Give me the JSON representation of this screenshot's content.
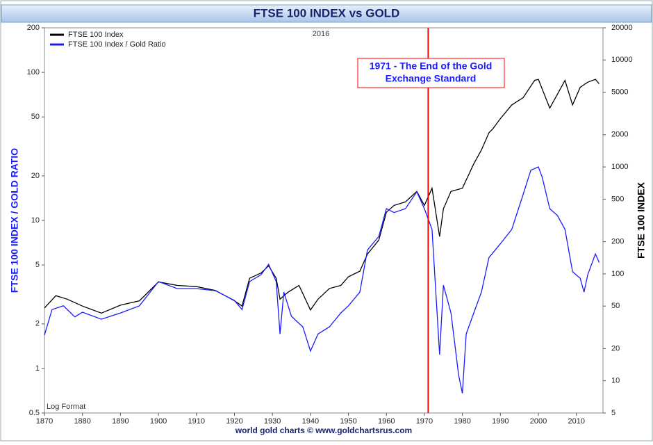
{
  "chart_data": {
    "type": "line",
    "title": "FTSE 100 INDEX vs GOLD",
    "subtitle": "2016",
    "note": "Log Format",
    "footer": "world gold charts © www.goldchartsrus.com",
    "ylabel": "FTSE 100 INDEX / GOLD RATIO",
    "y2label": "FTSE 100 INDEX",
    "xlim": [
      1870,
      2017
    ],
    "xticks": [
      1870,
      1880,
      1890,
      1900,
      1910,
      1920,
      1930,
      1940,
      1950,
      1960,
      1970,
      1980,
      1990,
      2000,
      2010
    ],
    "ylim": [
      0.5,
      200
    ],
    "yticks": [
      0.5,
      1,
      2,
      5,
      10,
      20,
      50,
      100,
      200
    ],
    "y2lim": [
      5,
      20000
    ],
    "y2ticks": [
      5,
      10,
      20,
      50,
      100,
      200,
      500,
      1000,
      2000,
      5000,
      10000,
      20000
    ],
    "yscale": "log",
    "y2scale": "log",
    "grid": false,
    "legend": "upper left",
    "annotation": {
      "lines": [
        "1971 - The End of the Gold",
        "Exchange Standard"
      ],
      "x": 1971,
      "color": "#ff0000"
    },
    "series": [
      {
        "name": "FTSE 100 Index",
        "color": "#000000",
        "axis": "y2",
        "x": [
          1870,
          1873,
          1876,
          1880,
          1885,
          1890,
          1895,
          1900,
          1905,
          1910,
          1915,
          1920,
          1922,
          1924,
          1927,
          1929,
          1931,
          1932,
          1934,
          1937,
          1940,
          1942,
          1945,
          1948,
          1950,
          1953,
          1955,
          1958,
          1960,
          1962,
          1965,
          1968,
          1970,
          1972,
          1974,
          1975,
          1977,
          1980,
          1983,
          1985,
          1987,
          1988,
          1990,
          1993,
          1996,
          1999,
          2000,
          2003,
          2005,
          2007,
          2009,
          2011,
          2013,
          2015,
          2016
        ],
        "values": [
          48,
          62.5,
          58,
          50,
          43,
          51,
          56,
          84,
          78,
          76,
          70,
          56,
          50,
          91,
          102,
          119,
          91,
          58,
          67,
          78,
          46,
          58,
          73,
          78,
          94,
          106,
          153,
          207,
          377,
          437,
          471,
          590,
          437,
          632,
          223,
          406,
          590,
          632,
          1070,
          1440,
          2090,
          2270,
          2830,
          3800,
          4450,
          6450,
          6600,
          3550,
          4780,
          6450,
          3800,
          5550,
          6200,
          6600,
          6000
        ]
      },
      {
        "name": "FTSE 100 Index / Gold Ratio",
        "color": "#1a1aff",
        "axis": "y",
        "x": [
          1870,
          1872,
          1875,
          1878,
          1880,
          1885,
          1890,
          1895,
          1900,
          1905,
          1910,
          1915,
          1920,
          1922,
          1924,
          1927,
          1929,
          1931,
          1932,
          1933,
          1935,
          1938,
          1940,
          1942,
          1945,
          1948,
          1950,
          1953,
          1955,
          1958,
          1960,
          1962,
          1965,
          1968,
          1970,
          1972,
          1974,
          1975,
          1977,
          1979,
          1980,
          1981,
          1983,
          1985,
          1987,
          1990,
          1993,
          1996,
          1998,
          2000,
          2001,
          2003,
          2005,
          2007,
          2009,
          2011,
          2012,
          2013,
          2015,
          2016
        ],
        "values": [
          1.68,
          2.5,
          2.65,
          2.23,
          2.4,
          2.15,
          2.37,
          2.65,
          3.86,
          3.46,
          3.46,
          3.35,
          2.88,
          2.5,
          3.86,
          4.3,
          5.05,
          3.86,
          1.71,
          3.28,
          2.25,
          1.91,
          1.31,
          1.71,
          1.91,
          2.37,
          2.65,
          3.28,
          6.3,
          7.8,
          12,
          11.3,
          12,
          15.6,
          12,
          8.7,
          1.24,
          3.65,
          2.37,
          0.9,
          0.68,
          1.71,
          2.37,
          3.28,
          5.62,
          6.95,
          8.7,
          15,
          21.8,
          23,
          19.6,
          12,
          10.8,
          8.7,
          4.5,
          4.06,
          3.28,
          4.3,
          5.94,
          5.2
        ]
      }
    ]
  }
}
